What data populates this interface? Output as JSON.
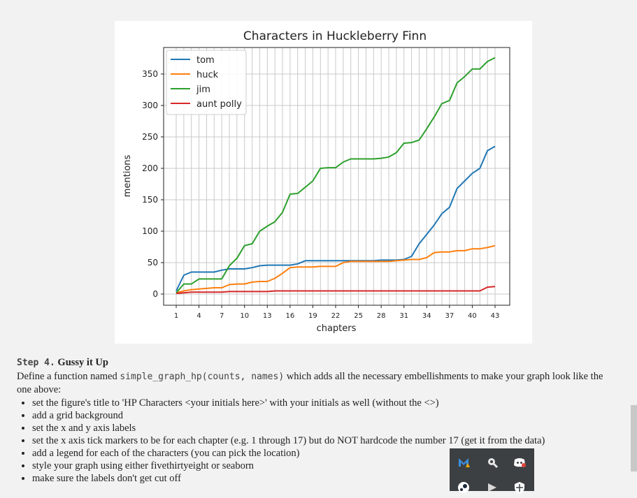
{
  "chart_data": {
    "type": "line",
    "title": "Characters in Huckleberry Finn",
    "xlabel": "chapters",
    "ylabel": "mentions",
    "xlim": [
      1,
      43
    ],
    "ylim": [
      0,
      400
    ],
    "xticks": [
      1,
      4,
      7,
      10,
      13,
      16,
      19,
      22,
      25,
      28,
      31,
      34,
      37,
      40,
      43
    ],
    "yticks": [
      0,
      50,
      100,
      150,
      200,
      250,
      300,
      350
    ],
    "grid": true,
    "legend_position": "top-left",
    "x": [
      1,
      2,
      3,
      4,
      5,
      6,
      7,
      8,
      9,
      10,
      11,
      12,
      13,
      14,
      15,
      16,
      17,
      18,
      19,
      20,
      21,
      22,
      23,
      24,
      25,
      26,
      27,
      28,
      29,
      30,
      31,
      32,
      33,
      34,
      35,
      36,
      37,
      38,
      39,
      40,
      41,
      42,
      43
    ],
    "series": [
      {
        "name": "tom",
        "color": "#1f77b4",
        "values": [
          5,
          30,
          35,
          35,
          35,
          35,
          38,
          40,
          40,
          40,
          42,
          45,
          46,
          46,
          46,
          46,
          48,
          53,
          53,
          53,
          53,
          53,
          53,
          53,
          53,
          53,
          53,
          54,
          54,
          54,
          55,
          60,
          80,
          95,
          110,
          128,
          138,
          168,
          180,
          192,
          200,
          228,
          235
        ]
      },
      {
        "name": "huck",
        "color": "#ff7f0e",
        "values": [
          2,
          5,
          7,
          8,
          9,
          10,
          10,
          15,
          16,
          16,
          19,
          20,
          20,
          25,
          33,
          42,
          43,
          43,
          43,
          44,
          44,
          44,
          50,
          52,
          52,
          52,
          52,
          52,
          52,
          53,
          54,
          55,
          55,
          58,
          66,
          67,
          67,
          69,
          69,
          72,
          72,
          74,
          77
        ]
      },
      {
        "name": "jim",
        "color": "#2ca02c",
        "values": [
          2,
          16,
          16,
          24,
          24,
          24,
          24,
          45,
          57,
          77,
          80,
          100,
          108,
          115,
          130,
          159,
          160,
          170,
          180,
          200,
          201,
          201,
          210,
          215,
          215,
          215,
          215,
          216,
          218,
          225,
          240,
          241,
          245,
          263,
          282,
          303,
          308,
          336,
          346,
          358,
          358,
          370,
          376
        ]
      },
      {
        "name": "aunt polly",
        "color": "#d62728",
        "values": [
          1,
          2,
          3,
          3,
          3,
          3,
          3,
          4,
          4,
          4,
          4,
          4,
          4,
          5,
          5,
          5,
          5,
          5,
          5,
          5,
          5,
          5,
          5,
          5,
          5,
          5,
          5,
          5,
          5,
          5,
          5,
          5,
          5,
          5,
          5,
          5,
          5,
          5,
          5,
          5,
          5,
          11,
          12
        ]
      }
    ]
  },
  "step": {
    "label": "Step 4.",
    "title": "Gussy it Up",
    "intro_before": "Define a function named ",
    "intro_code": "simple_graph_hp(counts, names)",
    "intro_after": " which adds all the necessary embellishments to make your graph look like the one above:",
    "bullets": [
      "set the figure's title to 'HP Characters <your initials here>' with your initials as well (without the <>)",
      "add a grid background",
      "set the x and y axis labels",
      "set the x axis tick markers to be for each chapter (e.g. 1 through 17) but do NOT hardcode the number 17 (get it from the data)",
      "add a legend for each of the characters (you can pick the location)",
      "style your graph using either fivethirtyeight or seaborn",
      "make sure the labels don't get cut off"
    ]
  },
  "tray": {
    "icons": [
      "malwarebytes-icon",
      "tool-icon",
      "discord-icon",
      "steam-icon",
      "network-icon",
      "security-icon"
    ]
  }
}
